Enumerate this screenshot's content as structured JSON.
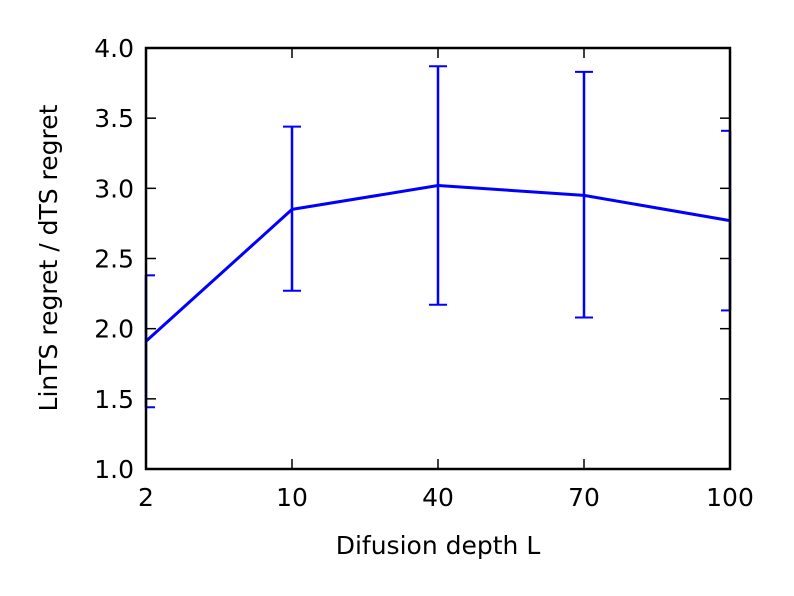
{
  "chart_data": {
    "type": "line",
    "categories": [
      "2",
      "10",
      "40",
      "70",
      "100"
    ],
    "series": [
      {
        "values": [
          1.91,
          2.85,
          3.02,
          2.95,
          2.77
        ],
        "err_low": [
          1.44,
          2.27,
          2.17,
          2.08,
          2.13
        ],
        "err_high": [
          2.38,
          3.44,
          3.87,
          3.83,
          3.41
        ]
      }
    ],
    "xlabel": "Difusion depth L",
    "ylabel": "LinTS regret / dTS regret",
    "ylim": [
      1.0,
      4.0
    ],
    "yticks": [
      "1.0",
      "1.5",
      "2.0",
      "2.5",
      "3.0",
      "3.5",
      "4.0"
    ],
    "grid": false,
    "colors": {
      "series": "#0000ff",
      "axes": "#000000"
    }
  }
}
